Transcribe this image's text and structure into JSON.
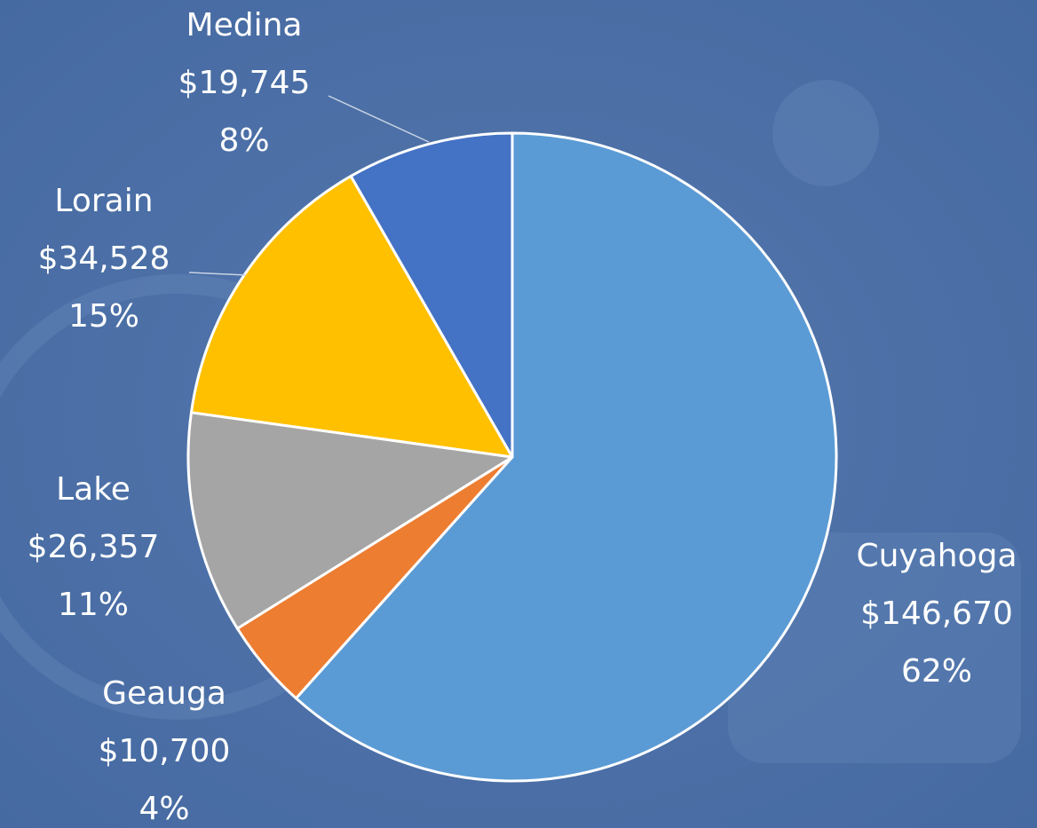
{
  "chart_data": {
    "type": "pie",
    "categories": [
      "Cuyahoga",
      "Geauga",
      "Lake",
      "Lorain",
      "Medina"
    ],
    "values": [
      146670,
      10700,
      26357,
      34528,
      19745
    ],
    "value_labels": [
      "$146,670",
      "$10,700",
      "$26,357",
      "$34,528",
      "$19,745"
    ],
    "percent_labels": [
      "62%",
      "4%",
      "11%",
      "15%",
      "8%"
    ],
    "colors": [
      "#5b9bd5",
      "#ed7d31",
      "#a5a5a5",
      "#ffc000",
      "#4472c4"
    ]
  }
}
